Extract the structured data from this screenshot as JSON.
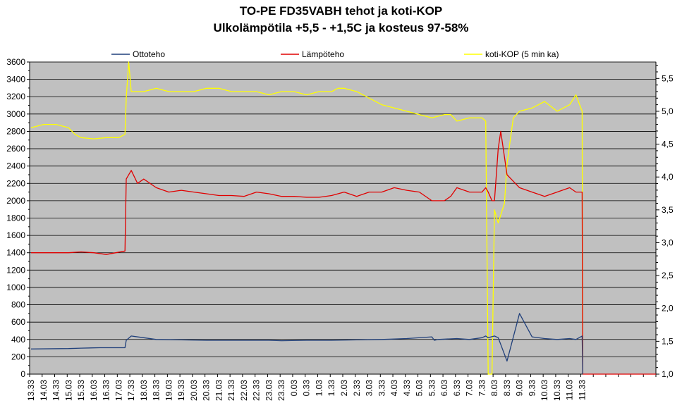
{
  "chart_data": {
    "type": "line",
    "title": "TO-PE FD35VABH tehot ja koti-KOP",
    "subtitle": "Ulkolämpötila +5,5 - +1,5C ja kosteus 97-58%",
    "legend_position": "top",
    "grid": true,
    "x_ticks": [
      "13.33",
      "14.03",
      "14.33",
      "15.03",
      "15.33",
      "16.03",
      "16.33",
      "17.03",
      "17.33",
      "18.03",
      "18.33",
      "19.03",
      "19.33",
      "20.03",
      "20.33",
      "21.03",
      "21.33",
      "22.03",
      "22.33",
      "23.03",
      "23.33",
      "0.03",
      "0.33",
      "1.03",
      "1.33",
      "2.03",
      "2.33",
      "3.03",
      "3.33",
      "4.03",
      "4.33",
      "5.03",
      "5.33",
      "6.03",
      "6.33",
      "7.03",
      "7.33",
      "8.03",
      "8.33",
      "9.03",
      "9.33",
      "10.03",
      "10.33",
      "11.03",
      "11.33"
    ],
    "y_left": {
      "min": 0,
      "max": 3600,
      "step": 200
    },
    "y_left_ticks": [
      "0",
      "200",
      "400",
      "600",
      "800",
      "1000",
      "1200",
      "1400",
      "1600",
      "1800",
      "2000",
      "2200",
      "2400",
      "2600",
      "2800",
      "3000",
      "3200",
      "3400",
      "3600"
    ],
    "y_right": {
      "min": 1.0,
      "max": 5.75,
      "step": 0.5
    },
    "y_right_ticks": [
      "1,0",
      "1,5",
      "2,0",
      "2,5",
      "3,0",
      "3,5",
      "4,0",
      "4,5",
      "5,0",
      "5,5"
    ],
    "series": [
      {
        "name": "Ottoteho",
        "color": "#1f3f7a",
        "axis": "left",
        "x": [
          0,
          3,
          4,
          5.5,
          7.5,
          7.6,
          8,
          9,
          10,
          12,
          14,
          17,
          19,
          20,
          22,
          24,
          26,
          28,
          30,
          32,
          32.2,
          32.5,
          34,
          35,
          36,
          36.3,
          36.5,
          37,
          37.3,
          38,
          39,
          40,
          41,
          42,
          43,
          43.5,
          44,
          44.05
        ],
        "y": [
          290,
          295,
          300,
          305,
          305,
          390,
          440,
          420,
          400,
          395,
          390,
          390,
          390,
          385,
          390,
          390,
          395,
          400,
          410,
          430,
          390,
          400,
          410,
          400,
          420,
          440,
          420,
          440,
          420,
          150,
          700,
          430,
          410,
          400,
          410,
          400,
          440,
          0
        ]
      },
      {
        "name": "Lämpöteho",
        "color": "#e00000",
        "axis": "left",
        "x": [
          0,
          3,
          4,
          5,
          6,
          7.5,
          7.6,
          8,
          8.5,
          9,
          10,
          11,
          12,
          13,
          14,
          15,
          16,
          17,
          18,
          19,
          20,
          21,
          22,
          23,
          24,
          25,
          26,
          27,
          28,
          29,
          30,
          31,
          32,
          33,
          33.5,
          34,
          35,
          36,
          36.3,
          36.5,
          36.8,
          37,
          37.3,
          37.5,
          38,
          39,
          40,
          41,
          42,
          43,
          43.5,
          44,
          44.05
        ],
        "y": [
          1400,
          1400,
          1410,
          1400,
          1380,
          1420,
          2250,
          2350,
          2200,
          2250,
          2150,
          2100,
          2120,
          2100,
          2080,
          2060,
          2060,
          2050,
          2100,
          2080,
          2050,
          2050,
          2040,
          2040,
          2060,
          2100,
          2050,
          2100,
          2100,
          2150,
          2120,
          2100,
          2000,
          2000,
          2050,
          2150,
          2100,
          2100,
          2150,
          2100,
          2000,
          2000,
          2600,
          2800,
          2300,
          2150,
          2100,
          2050,
          2100,
          2150,
          2100,
          2100,
          0
        ]
      },
      {
        "name": "koti-KOP (5 min ka)",
        "color": "#ffff00",
        "axis": "right",
        "x": [
          0,
          1,
          2,
          3,
          3.5,
          4,
          5,
          6,
          7,
          7.5,
          7.6,
          7.8,
          8,
          8.5,
          9,
          10,
          11,
          12,
          13,
          14,
          15,
          16,
          17,
          18,
          19,
          20,
          21,
          22,
          23,
          24,
          24.5,
          25,
          26,
          27,
          28,
          29,
          30,
          31,
          32,
          33,
          33.5,
          34,
          35,
          36,
          36.3,
          36.5,
          36.8,
          37,
          37.3,
          37.8,
          38,
          38.5,
          39,
          40,
          41,
          42,
          43,
          43.5,
          44,
          44.05
        ],
        "y": [
          4.75,
          4.8,
          4.8,
          4.75,
          4.65,
          4.6,
          4.58,
          4.6,
          4.6,
          4.65,
          5.2,
          5.75,
          5.3,
          5.3,
          5.3,
          5.35,
          5.3,
          5.3,
          5.3,
          5.35,
          5.35,
          5.3,
          5.3,
          5.3,
          5.25,
          5.3,
          5.3,
          5.25,
          5.3,
          5.3,
          5.35,
          5.35,
          5.3,
          5.2,
          5.1,
          5.05,
          5.0,
          4.95,
          4.9,
          4.95,
          4.95,
          4.85,
          4.9,
          4.9,
          4.85,
          1.0,
          1.0,
          3.5,
          3.3,
          3.6,
          4.2,
          4.9,
          5.0,
          5.05,
          5.15,
          5.0,
          5.1,
          5.25,
          5.0,
          1.0
        ]
      }
    ]
  }
}
